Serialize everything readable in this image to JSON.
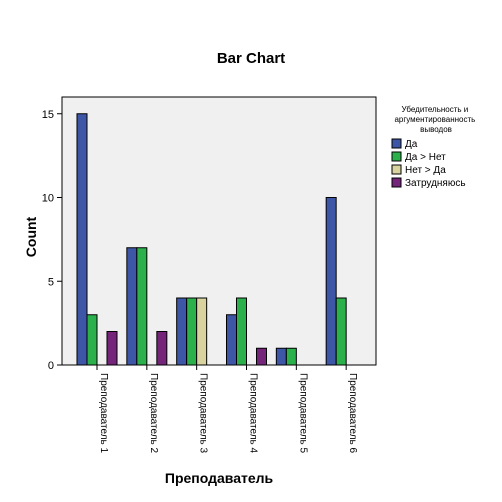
{
  "chart_data": {
    "type": "bar",
    "title": "Bar Chart",
    "xlabel": "Преподаватель",
    "ylabel": "Count",
    "ylim": [
      0,
      16
    ],
    "yticks": [
      0,
      5,
      10,
      15
    ],
    "grid": false,
    "legend_placement": "right",
    "legend_title": "Убедительность и аргументированность выводов",
    "legend_title_lines": [
      "Убедительность и",
      "аргументированность",
      "выводов"
    ],
    "categories": [
      "Преподаватель 1",
      "Преподаватель 2",
      "Преподаватель 3",
      "Преподаватель 4",
      "Преподаватель 5",
      "Преподаватель 6"
    ],
    "series": [
      {
        "name": "Да",
        "color": "#3d57a6",
        "values": [
          15,
          7,
          4,
          3,
          1,
          10
        ]
      },
      {
        "name": "Да > Нет",
        "color": "#2bb04c",
        "values": [
          3,
          7,
          4,
          4,
          1,
          4
        ]
      },
      {
        "name": "Нет > Да",
        "color": "#d9d3a0",
        "values": [
          0,
          0,
          4,
          0,
          0,
          0
        ]
      },
      {
        "name": "Затрудняюсь",
        "color": "#74257a",
        "values": [
          2,
          2,
          0,
          1,
          0,
          0
        ]
      }
    ]
  }
}
